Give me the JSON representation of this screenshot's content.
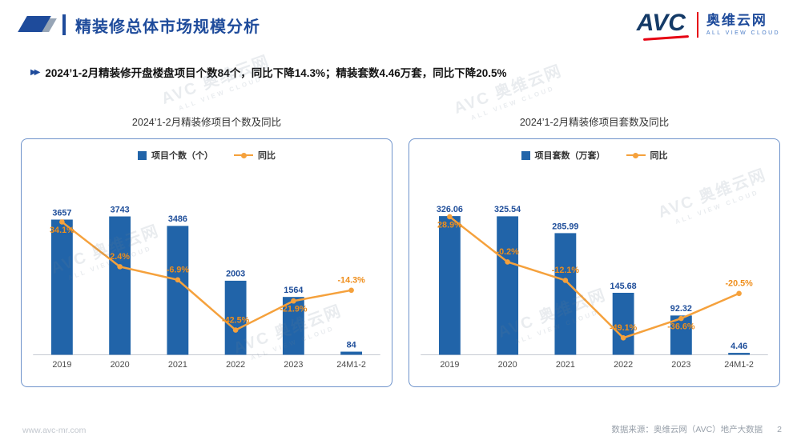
{
  "header": {
    "title": "精装修总体市场规模分析",
    "logo": {
      "avc": "AVC",
      "company": "奥维云网",
      "tagline": "ALL VIEW CLOUD"
    }
  },
  "bullet": "2024’1-2月精装修开盘楼盘项目个数84个，同比下降14.3%；精装套数4.46万套，同比下降20.5%",
  "watermark": {
    "line1": "AVC 奥维云网",
    "line2": "ALL VIEW CLOUD"
  },
  "chart_data": [
    {
      "type": "bar",
      "subtype": "bar-line-combo",
      "title": "2024’1-2月精装修项目个数及同比",
      "categories": [
        "2019",
        "2020",
        "2021",
        "2022",
        "2023",
        "24M1-2"
      ],
      "series": [
        {
          "name": "项目个数（个）",
          "kind": "bar",
          "values": [
            3657,
            3743,
            3486,
            2003,
            1564,
            84
          ],
          "labels": [
            "3657",
            "3743",
            "3486",
            "2003",
            "1564",
            "84"
          ]
        },
        {
          "name": "同比",
          "kind": "line",
          "unit": "%",
          "values": [
            34.1,
            2.4,
            -6.9,
            -42.5,
            -21.9,
            -14.3
          ],
          "labels": [
            "34.1%",
            "2.4%",
            "-6.9%",
            "-42.5%",
            "-21.9%",
            "-14.3%"
          ]
        }
      ],
      "bar_axis": [
        0,
        4200
      ],
      "line_axis": [
        -60,
        50
      ],
      "grid": false,
      "legend_position": "top",
      "bar_color": "#2164A9",
      "bar_label_color": "#1F4E9A",
      "line_color": "#F5A13C",
      "line_label_color": "#EF8E1B"
    },
    {
      "type": "bar",
      "subtype": "bar-line-combo",
      "title": "2024’1-2月精装修项目套数及同比",
      "categories": [
        "2019",
        "2020",
        "2021",
        "2022",
        "2023",
        "24M1-2"
      ],
      "series": [
        {
          "name": "项目套数（万套）",
          "kind": "bar",
          "values": [
            326.06,
            325.54,
            285.99,
            145.68,
            92.32,
            4.46
          ],
          "labels": [
            "326.06",
            "325.54",
            "285.99",
            "145.68",
            "92.32",
            "4.46"
          ]
        },
        {
          "name": "同比",
          "kind": "line",
          "unit": "%",
          "values": [
            28.9,
            -0.2,
            -12.1,
            -49.1,
            -36.6,
            -20.5
          ],
          "labels": [
            "28.9%",
            "-0.2%",
            "-12.1%",
            "-49.1%",
            "-36.6%",
            "-20.5%"
          ]
        }
      ],
      "bar_axis": [
        0,
        365
      ],
      "line_axis": [
        -60,
        40
      ],
      "grid": false,
      "legend_position": "top",
      "bar_color": "#2164A9",
      "bar_label_color": "#1F4E9A",
      "line_color": "#F5A13C",
      "line_label_color": "#EF8E1B"
    }
  ],
  "footer": {
    "website": "www.avc-mr.com",
    "source": "数据来源：奥维云网（AVC）地产大数据",
    "page": "2"
  }
}
